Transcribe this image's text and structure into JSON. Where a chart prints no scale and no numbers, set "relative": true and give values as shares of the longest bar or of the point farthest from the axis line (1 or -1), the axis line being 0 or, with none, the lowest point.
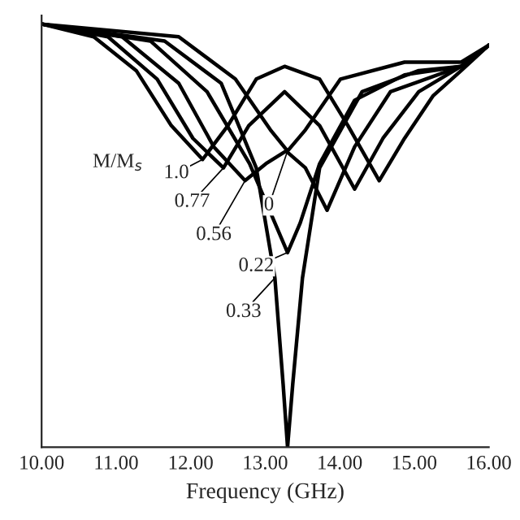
{
  "chart_data": {
    "type": "line",
    "relative": true,
    "xlabel": "Frequency (GHz)",
    "xlim": [
      10,
      16
    ],
    "xticks": [
      {
        "value": 10,
        "label": "10.00"
      },
      {
        "value": 11,
        "label": "11.00"
      },
      {
        "value": 12,
        "label": "12.00"
      },
      {
        "value": 13,
        "label": "13.00"
      },
      {
        "value": 14,
        "label": "14.00"
      },
      {
        "value": 15,
        "label": "15.00"
      },
      {
        "value": 16,
        "label": "16.00"
      }
    ],
    "tick_labels": "x",
    "grid": false,
    "legend": "center",
    "legend_title": "M/M$_{s}$",
    "marker": "none",
    "line_style": "solid",
    "series": [
      {
        "name": "1.0",
        "color": "#000000",
        "x": [
          10,
          10.7,
          11.27,
          11.74,
          12.16,
          12.5,
          12.88,
          13.26,
          13.73,
          14.11,
          14.53,
          14.87,
          15.25,
          15.63,
          16.0
        ],
        "values": [
          1.0,
          0.97,
          0.89,
          0.76,
          0.68,
          0.76,
          0.87,
          0.9,
          0.87,
          0.76,
          0.63,
          0.73,
          0.83,
          0.89,
          0.95
        ]
      },
      {
        "name": "0.77",
        "color": "#000000",
        "x": [
          10,
          10.89,
          11.55,
          12.03,
          12.44,
          12.78,
          13.26,
          13.73,
          14.2,
          14.58,
          15.06,
          15.63,
          16
        ],
        "values": [
          1,
          0.97,
          0.87,
          0.73,
          0.66,
          0.76,
          0.84,
          0.76,
          0.61,
          0.73,
          0.84,
          0.9,
          0.95
        ]
      },
      {
        "name": "0.56",
        "color": "#000000",
        "x": [
          10,
          11.08,
          11.84,
          12.31,
          12.73,
          13.01,
          13.28,
          13.54,
          13.83,
          14.2,
          14.68,
          15.63,
          16
        ],
        "values": [
          1,
          0.97,
          0.86,
          0.71,
          0.63,
          0.67,
          0.7,
          0.66,
          0.56,
          0.71,
          0.84,
          0.9,
          0.95
        ]
      },
      {
        "name": "0.22",
        "color": "#000000",
        "x": [
          10,
          11.46,
          12.22,
          12.79,
          13.13,
          13.3,
          13.47,
          13.73,
          14.2,
          14.87,
          15.63,
          16
        ],
        "values": [
          1,
          0.96,
          0.84,
          0.67,
          0.53,
          0.46,
          0.53,
          0.67,
          0.82,
          0.88,
          0.9,
          0.95
        ]
      },
      {
        "name": "0.33",
        "color": "#000000",
        "x": [
          10,
          11.65,
          12.41,
          12.88,
          13.13,
          13.24,
          13.3,
          13.37,
          13.5,
          13.73,
          14.3,
          15.06,
          15.63,
          16
        ],
        "values": [
          1,
          0.96,
          0.86,
          0.66,
          0.4,
          0.15,
          0,
          0.15,
          0.4,
          0.66,
          0.84,
          0.89,
          0.9,
          0.95
        ]
      },
      {
        "name": "0",
        "color": "#000000",
        "x": [
          10,
          11.84,
          12.6,
          13.07,
          13.3,
          13.54,
          14.01,
          14.87,
          15.63,
          16
        ],
        "values": [
          1,
          0.97,
          0.87,
          0.75,
          0.7,
          0.75,
          0.87,
          0.91,
          0.91,
          0.95
        ]
      }
    ]
  }
}
